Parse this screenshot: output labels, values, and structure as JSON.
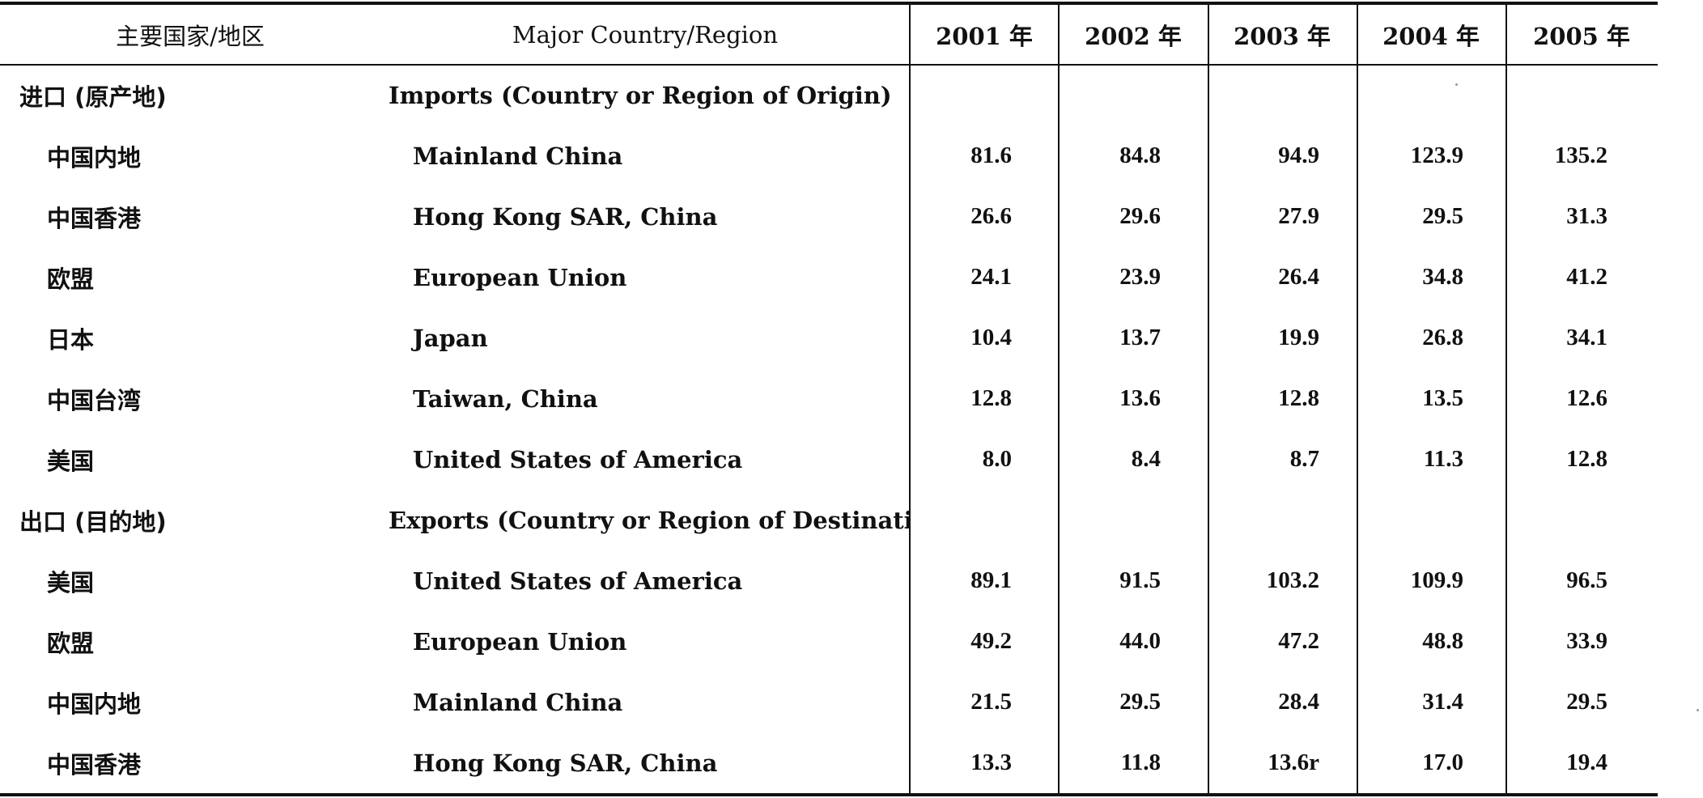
{
  "header": {
    "cn": "主要国家/地区",
    "en": "Major Country/Region",
    "years": [
      "2001 年",
      "2002 年",
      "2003 年",
      "2004 年",
      "2005 年"
    ]
  },
  "rows": [
    {
      "type": "section",
      "cn": "进口 (原产地)",
      "en": "Imports (Country or Region of Origin)",
      "values": [
        "",
        "",
        "",
        "",
        ""
      ]
    },
    {
      "type": "data",
      "cn": "中国内地",
      "en": "Mainland China",
      "values": [
        "81.6",
        "84.8",
        "94.9",
        "123.9",
        "135.2"
      ]
    },
    {
      "type": "data",
      "cn": "中国香港",
      "en": "Hong Kong SAR, China",
      "values": [
        "26.6",
        "29.6",
        "27.9",
        "29.5",
        "31.3"
      ]
    },
    {
      "type": "data",
      "cn": "欧盟",
      "en": "European Union",
      "values": [
        "24.1",
        "23.9",
        "26.4",
        "34.8",
        "41.2"
      ]
    },
    {
      "type": "data",
      "cn": "日本",
      "en": "Japan",
      "values": [
        "10.4",
        "13.7",
        "19.9",
        "26.8",
        "34.1"
      ]
    },
    {
      "type": "data",
      "cn": "中国台湾",
      "en": "Taiwan, China",
      "values": [
        "12.8",
        "13.6",
        "12.8",
        "13.5",
        "12.6"
      ]
    },
    {
      "type": "data",
      "cn": "美国",
      "en": "United States of America",
      "values": [
        "8.0",
        "8.4",
        "8.7",
        "11.3",
        "12.8"
      ]
    },
    {
      "type": "section",
      "cn": "出口 (目的地)",
      "en": "Exports (Country or Region of Destination)",
      "values": [
        "",
        "",
        "",
        "",
        ""
      ]
    },
    {
      "type": "data",
      "cn": "美国",
      "en": "United States of America",
      "values": [
        "89.1",
        "91.5",
        "103.2",
        "109.9",
        "96.5"
      ]
    },
    {
      "type": "data",
      "cn": "欧盟",
      "en": "European Union",
      "values": [
        "49.2",
        "44.0",
        "47.2",
        "48.8",
        "33.9"
      ]
    },
    {
      "type": "data",
      "cn": "中国内地",
      "en": "Mainland China",
      "values": [
        "21.5",
        "29.5",
        "28.4",
        "31.4",
        "29.5"
      ]
    },
    {
      "type": "data",
      "cn": "中国香港",
      "en": "Hong Kong SAR, China",
      "values": [
        "13.3",
        "11.8",
        "13.6r",
        "17.0",
        "19.4"
      ]
    }
  ]
}
